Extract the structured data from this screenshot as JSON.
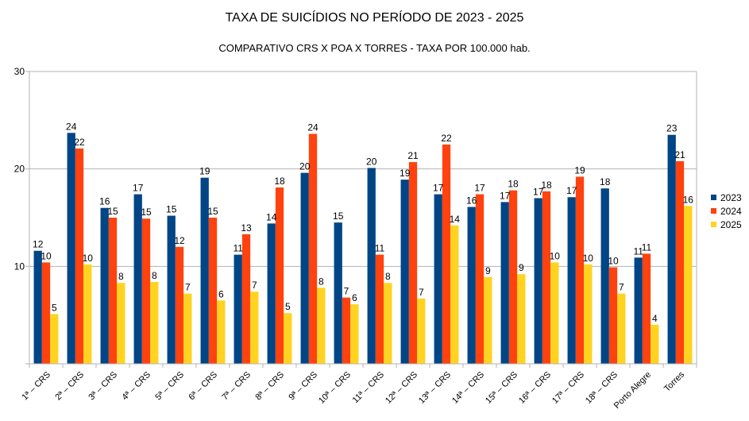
{
  "chart_data": {
    "type": "bar",
    "title": "TAXA DE SUICÍDIOS NO PERÍODO DE 2023 - 2025",
    "subtitle": "COMPARATIVO CRS X POA X TORRES - TAXA POR 100.000 hab.",
    "xlabel": "",
    "ylabel": "",
    "ylim": [
      0,
      30
    ],
    "yticks": [
      0,
      10,
      20,
      30
    ],
    "ytick_labels": [
      "",
      "10",
      "20",
      "30"
    ],
    "grid": true,
    "legend_position": "right",
    "categories": [
      "1ª – CRS",
      "2ª – CRS",
      "3ª – CRS",
      "4ª – CRS",
      "5ª – CRS",
      "6ª – CRS",
      "7ª – CRS",
      "8ª – CRS",
      "9ª – CRS",
      "10ª – CRS",
      "11ª – CRS",
      "12ª – CRS",
      "13ª – CRS",
      "14ª – CRS",
      "15ª – CRS",
      "16ª – CRS",
      "17ª – CRS",
      "18ª – CRS",
      "Porto Alegre",
      "Torres"
    ],
    "series": [
      {
        "name": "2023",
        "color": "#004586",
        "values": [
          11.6,
          23.7,
          16.0,
          17.4,
          15.2,
          19.1,
          11.2,
          14.4,
          19.6,
          14.5,
          20.1,
          18.9,
          17.4,
          16.1,
          16.6,
          17.0,
          17.1,
          18.0,
          10.9,
          23.5
        ],
        "labels": [
          "12",
          "24",
          "16",
          "17",
          "15",
          "19",
          "11",
          "14",
          "20",
          "15",
          "20",
          "19",
          "17",
          "16",
          "17",
          "17",
          "17",
          "18",
          "11",
          "23"
        ]
      },
      {
        "name": "2024",
        "color": "#ff420e",
        "values": [
          10.4,
          22.1,
          15.0,
          14.9,
          12.0,
          15.0,
          13.3,
          18.1,
          23.6,
          6.8,
          11.2,
          20.7,
          22.5,
          17.4,
          17.8,
          17.7,
          19.2,
          9.9,
          11.3,
          20.8
        ],
        "labels": [
          "10",
          "22",
          "15",
          "15",
          "12",
          "15",
          "13",
          "18",
          "24",
          "7",
          "11",
          "21",
          "22",
          "17",
          "18",
          "18",
          "19",
          "10",
          "11",
          "21"
        ]
      },
      {
        "name": "2025",
        "color": "#ffd320",
        "values": [
          5.1,
          10.2,
          8.3,
          8.4,
          7.2,
          6.5,
          7.4,
          5.2,
          7.8,
          6.1,
          8.3,
          6.7,
          14.2,
          8.9,
          9.2,
          10.4,
          10.2,
          7.2,
          4.0,
          16.2
        ],
        "labels": [
          "5",
          "10",
          "8",
          "8",
          "7",
          "6",
          "7",
          "5",
          "8",
          "6",
          "8",
          "7",
          "14",
          "9",
          "9",
          "10",
          "10",
          "7",
          "4",
          "16"
        ]
      }
    ]
  }
}
